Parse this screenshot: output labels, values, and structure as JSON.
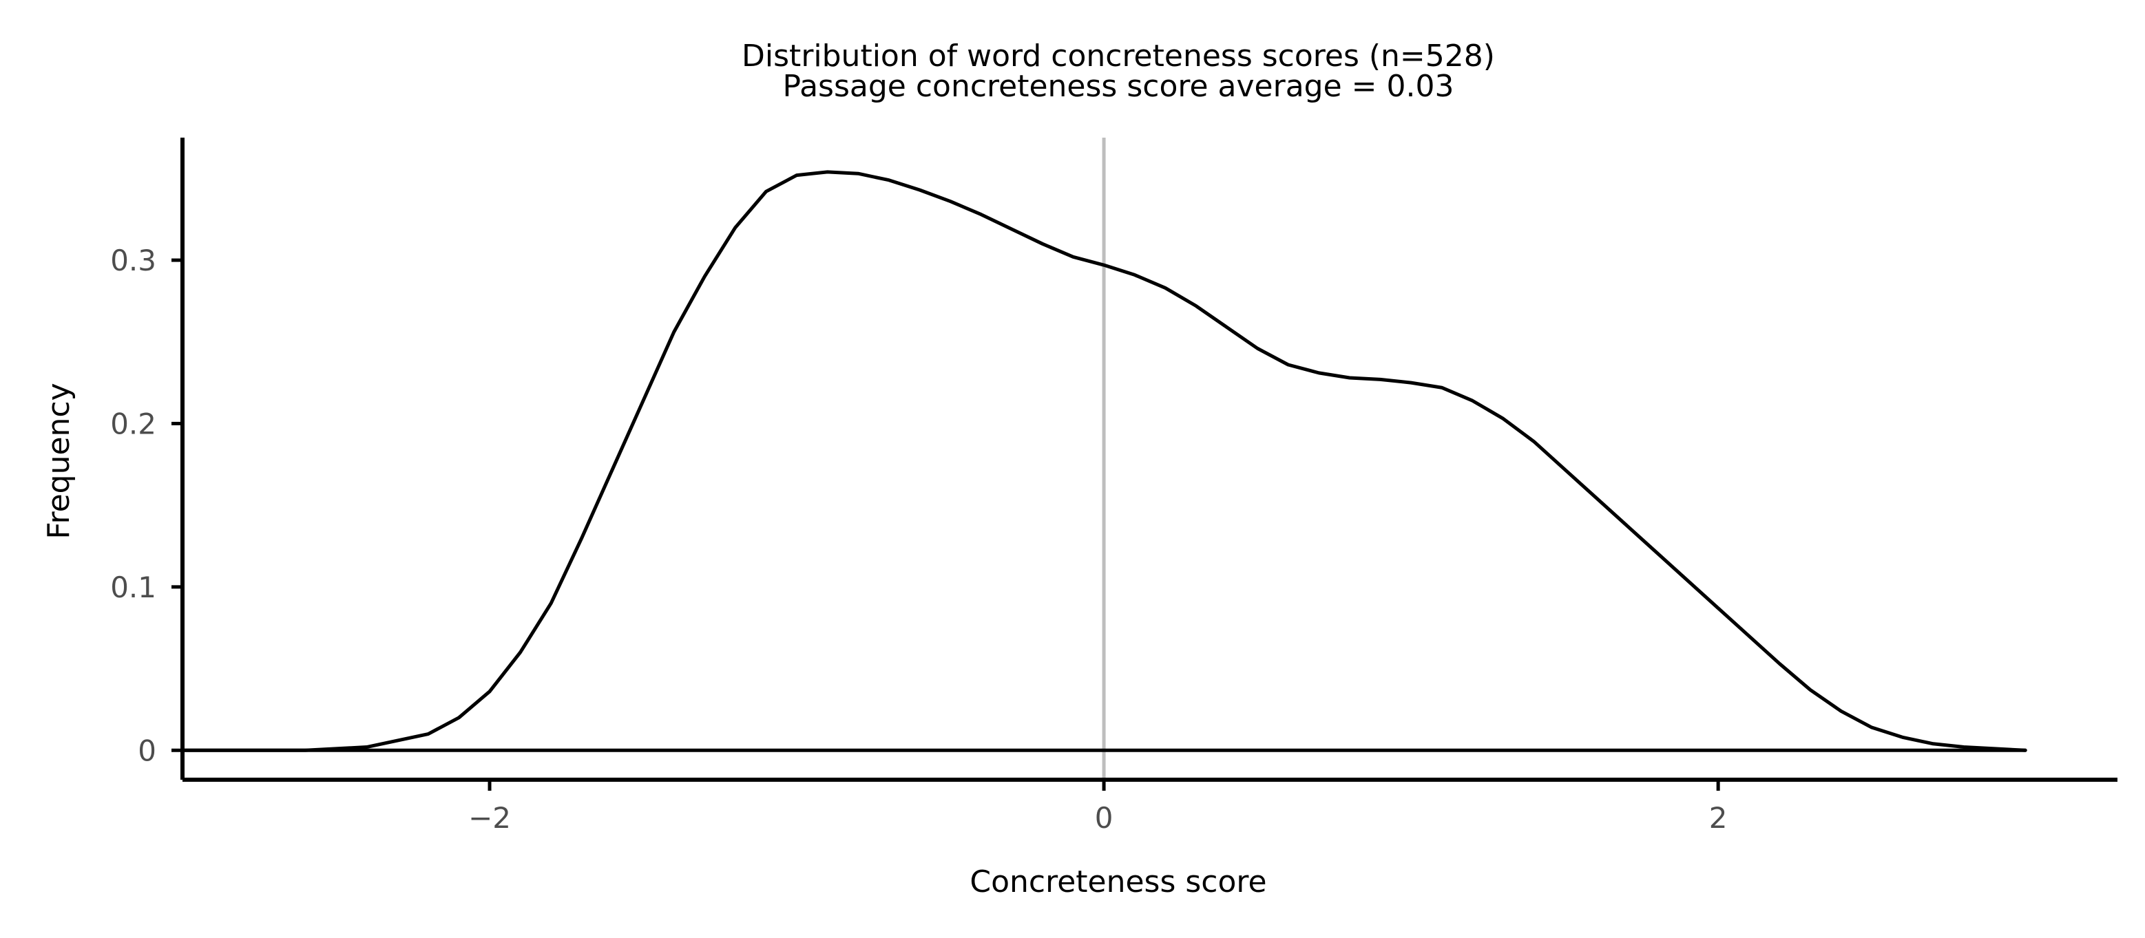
{
  "chart_data": {
    "type": "line",
    "title": "Distribution of word concreteness scores (n=528)",
    "subtitle": "Passage concreteness score average = 0.03",
    "xlabel": "Concreteness score",
    "ylabel": "Frequency",
    "xlim": [
      -3.0,
      3.3
    ],
    "ylim": [
      -0.018,
      0.375
    ],
    "x_ticks": [
      -2,
      0,
      2
    ],
    "x_tick_labels": [
      "−2",
      "0",
      "2"
    ],
    "y_ticks": [
      0,
      0.1,
      0.2,
      0.3
    ],
    "y_tick_labels": [
      "0",
      "0.1",
      "0.2",
      "0.3"
    ],
    "grid": false,
    "legend": "none",
    "reference_line": {
      "x": 0,
      "color": "#bebebe"
    },
    "line_color": "#000000",
    "series": [
      {
        "x": [
          -3.0,
          -2.8,
          -2.6,
          -2.4,
          -2.2,
          -2.1,
          -2.0,
          -1.9,
          -1.8,
          -1.7,
          -1.6,
          -1.5,
          -1.4,
          -1.3,
          -1.2,
          -1.1,
          -1.0,
          -0.9,
          -0.8,
          -0.7,
          -0.6,
          -0.5,
          -0.4,
          -0.3,
          -0.2,
          -0.1,
          0.0,
          0.1,
          0.2,
          0.3,
          0.4,
          0.5,
          0.6,
          0.7,
          0.8,
          0.9,
          1.0,
          1.1,
          1.2,
          1.3,
          1.4,
          1.5,
          1.6,
          1.7,
          1.8,
          1.9,
          2.0,
          2.1,
          2.2,
          2.3,
          2.4,
          2.5,
          2.6,
          2.7,
          2.8,
          2.9,
          3.0
        ],
        "y": [
          0.0,
          0.0,
          0.0,
          0.002,
          0.01,
          0.02,
          0.036,
          0.06,
          0.09,
          0.13,
          0.172,
          0.214,
          0.256,
          0.29,
          0.32,
          0.342,
          0.352,
          0.354,
          0.353,
          0.349,
          0.343,
          0.336,
          0.328,
          0.319,
          0.31,
          0.302,
          0.297,
          0.291,
          0.283,
          0.272,
          0.259,
          0.246,
          0.236,
          0.231,
          0.228,
          0.227,
          0.225,
          0.222,
          0.214,
          0.203,
          0.189,
          0.172,
          0.155,
          0.138,
          0.121,
          0.104,
          0.087,
          0.07,
          0.053,
          0.037,
          0.024,
          0.014,
          0.008,
          0.004,
          0.002,
          0.001,
          0.0
        ]
      },
      {
        "x": [
          -3.0,
          3.0
        ],
        "y": [
          0.0,
          0.0
        ]
      }
    ]
  }
}
